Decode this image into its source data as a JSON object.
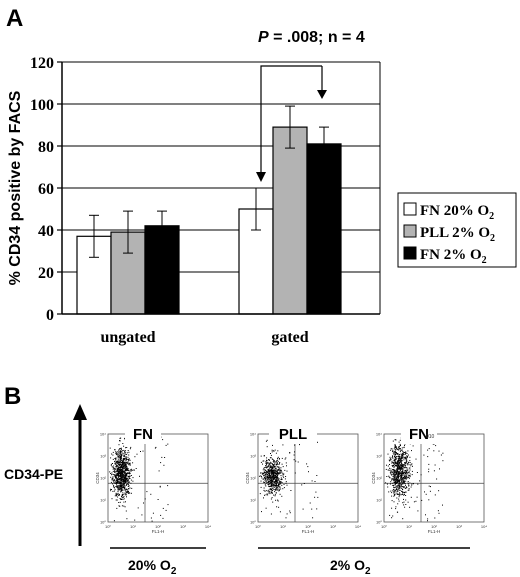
{
  "panel_a": {
    "letter": "A",
    "annotation_p": "P",
    "annotation_rest": " = .008; n = 4"
  },
  "panel_b": {
    "letter": "B",
    "y_axis_label": "CD34-PE",
    "plots": [
      {
        "label": "FN",
        "group": "20% O2"
      },
      {
        "label": "PLL",
        "group": "2% O2"
      },
      {
        "label": "FN",
        "group": "2% O2"
      }
    ],
    "group_20": {
      "text": "20%  O",
      "sub": "2"
    },
    "group_2": {
      "text": "2% O",
      "sub": "2"
    },
    "flow_x_label": "FL1-H",
    "flow_y_label": "CD34",
    "flow_ticks_x": [
      "10⁰",
      "10¹",
      "10²",
      "10³",
      "10⁴"
    ],
    "flow_ticks_y": [
      "10⁰",
      "10¹",
      "10²",
      "10³",
      "10⁴"
    ],
    "small_mark": "010"
  },
  "chart_data": {
    "type": "bar",
    "ylabel": "% CD34 positive by FACS",
    "ylim": [
      0,
      120
    ],
    "yticks": [
      "0",
      "20",
      "40",
      "60",
      "80",
      "100",
      "120"
    ],
    "categories": [
      "ungated",
      "gated"
    ],
    "series": [
      {
        "name": "FN 20% O",
        "sub": "2",
        "color": "#ffffff",
        "values": [
          37,
          50
        ],
        "errors": [
          10,
          10
        ]
      },
      {
        "name": "PLL 2% O",
        "sub": "2",
        "color": "#b3b3b3",
        "values": [
          39,
          89
        ],
        "errors": [
          10,
          10
        ]
      },
      {
        "name": "FN  2% O",
        "sub": "2",
        "color": "#000000",
        "values": [
          42,
          81
        ],
        "errors": [
          7,
          8
        ]
      }
    ],
    "grid": true,
    "legend": "right"
  }
}
